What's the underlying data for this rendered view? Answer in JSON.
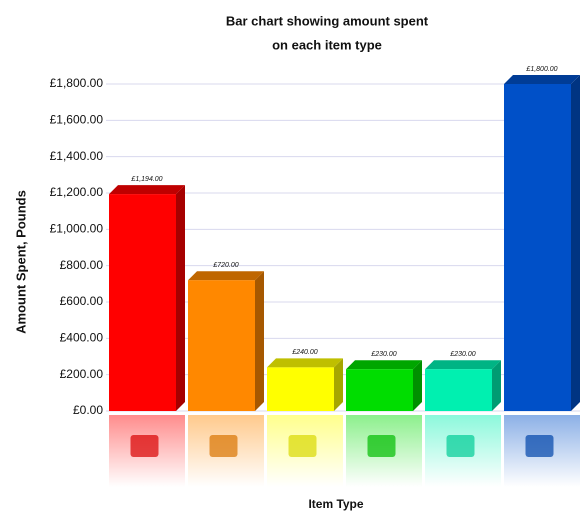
{
  "chart_data": {
    "type": "bar",
    "title": [
      "Bar chart showing amount spent",
      "on each item type"
    ],
    "x_label": "Item Type",
    "y_label": "Amount Spent, Pounds",
    "categories": [
      null,
      null,
      null,
      null,
      null,
      null
    ],
    "values": [
      1194,
      720,
      240,
      230,
      230,
      1800
    ],
    "value_labels": [
      "£1,194.00",
      "£720.00",
      "£240.00",
      "£230.00",
      "£230.00",
      "£1,800.00"
    ],
    "colors": [
      "#ff0000",
      "#ff8800",
      "#ffff00",
      "#00dd00",
      "#00f0b0",
      "#0050c8"
    ],
    "ylim": [
      0,
      1800
    ],
    "yticks": [
      {
        "value": 0,
        "label": "£0.00"
      },
      {
        "value": 200,
        "label": "£200.00"
      },
      {
        "value": 400,
        "label": "£400.00"
      },
      {
        "value": 600,
        "label": "£600.00"
      },
      {
        "value": 800,
        "label": "£800.00"
      },
      {
        "value": 1000,
        "label": "£1,000.00"
      },
      {
        "value": 1200,
        "label": "£1,200.00"
      },
      {
        "value": 1400,
        "label": "£1,400.00"
      },
      {
        "value": 1600,
        "label": "£1,600.00"
      },
      {
        "value": 1800,
        "label": "£1,800.00"
      }
    ],
    "grid": true
  }
}
